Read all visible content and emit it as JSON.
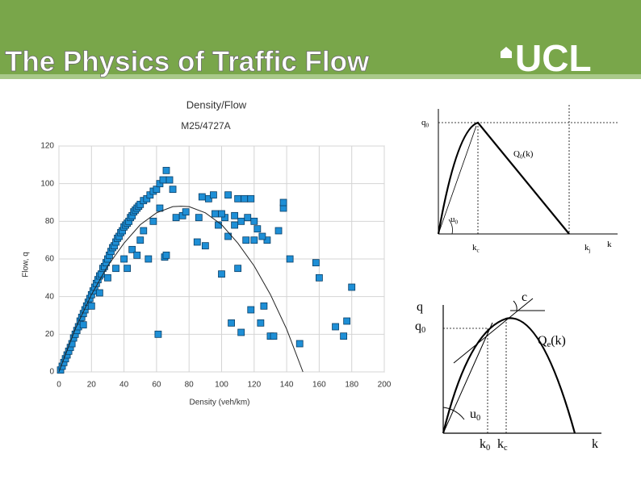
{
  "header": {
    "title": "The Physics of Traffic Flow",
    "logo": "UCL"
  },
  "chart_data": {
    "type": "scatter",
    "title": "Density/Flow",
    "subtitle": "M25/4727A",
    "x_label": "Density (veh/km)",
    "y_label": "Flow, q",
    "color": "#1e8fd6",
    "x": [
      1,
      2,
      3,
      4,
      5,
      6,
      7,
      8,
      9,
      10,
      11,
      12,
      13,
      14,
      15,
      16,
      17,
      18,
      19,
      20,
      21,
      22,
      23,
      24,
      25,
      26,
      27,
      28,
      29,
      30,
      31,
      32,
      33,
      34,
      35,
      36,
      37,
      38,
      39,
      40,
      41,
      42,
      43,
      44,
      45,
      46,
      47,
      48,
      49,
      50,
      52,
      54,
      56,
      58,
      60,
      62,
      64,
      66,
      68,
      70,
      30,
      35,
      40,
      45,
      50,
      55,
      52,
      58,
      62,
      65,
      66,
      72,
      76,
      78,
      85,
      86,
      88,
      90,
      92,
      95,
      98,
      100,
      102,
      104,
      106,
      108,
      110,
      110,
      112,
      114,
      116,
      118,
      118,
      120,
      122,
      124,
      126,
      128,
      130,
      132,
      135,
      138,
      138,
      142,
      148,
      158,
      160,
      170,
      175,
      177,
      180,
      104,
      112,
      115,
      120,
      100,
      96,
      108,
      125,
      61,
      20,
      15,
      25,
      42,
      48
    ],
    "values": [
      1,
      3,
      5,
      7,
      9,
      11,
      13,
      15,
      18,
      20,
      22,
      24,
      27,
      29,
      31,
      33,
      35,
      37,
      39,
      41,
      43,
      45,
      47,
      49,
      51,
      52,
      55,
      56,
      58,
      60,
      62,
      64,
      66,
      67,
      69,
      71,
      72,
      74,
      75,
      77,
      78,
      79,
      80,
      82,
      83,
      85,
      86,
      87,
      88,
      89,
      91,
      92,
      94,
      96,
      97,
      100,
      102,
      107,
      102,
      97,
      50,
      55,
      60,
      65,
      70,
      60,
      75,
      80,
      87,
      61,
      62,
      82,
      83,
      85,
      69,
      82,
      93,
      67,
      92,
      94,
      78,
      52,
      82,
      94,
      26,
      83,
      55,
      92,
      21,
      92,
      82,
      33,
      92,
      80,
      76,
      26,
      35,
      70,
      19,
      19,
      75,
      87,
      90,
      60,
      15,
      58,
      50,
      24,
      19,
      27,
      45,
      72,
      80,
      70,
      70,
      84,
      84,
      78,
      72,
      20,
      35,
      25,
      42,
      55,
      62
    ],
    "curve": {
      "color": "#222222",
      "x": [
        0,
        10,
        20,
        30,
        40,
        50,
        60,
        70,
        75,
        80,
        90,
        100,
        110,
        120,
        130,
        140,
        150
      ],
      "values": [
        0,
        22.7,
        41.1,
        56.3,
        68.4,
        78.2,
        84.5,
        87.8,
        88,
        87.8,
        84.5,
        78.2,
        68.4,
        56.3,
        41.1,
        22.7,
        0
      ]
    },
    "xlim": [
      0,
      200
    ],
    "xticks": [
      0,
      20,
      40,
      60,
      80,
      100,
      120,
      140,
      160,
      180,
      200
    ],
    "ylim": [
      0,
      120
    ],
    "yticks": [
      0,
      20,
      40,
      60,
      80,
      100,
      120
    ],
    "grid": true
  },
  "diagrams": [
    {
      "labels": [
        {
          "base": "q",
          "sub": "0"
        },
        {
          "base": "Q",
          "sub": "0",
          "after": "(k)"
        },
        {
          "base": "u",
          "sub": "0"
        },
        {
          "base": "k",
          "sub": "c"
        },
        {
          "base": "k",
          "sub": "j"
        },
        {
          "base": "k"
        }
      ]
    },
    {
      "labels": [
        {
          "base": "q"
        },
        {
          "base": "q",
          "sub": "0"
        },
        {
          "base": "c"
        },
        {
          "base": "Q",
          "sub": "e",
          "after": "(k)"
        },
        {
          "base": "u",
          "sub": "0"
        },
        {
          "base": "k",
          "sub": "0"
        },
        {
          "base": "k",
          "sub": "c"
        },
        {
          "base": "k"
        }
      ]
    }
  ]
}
